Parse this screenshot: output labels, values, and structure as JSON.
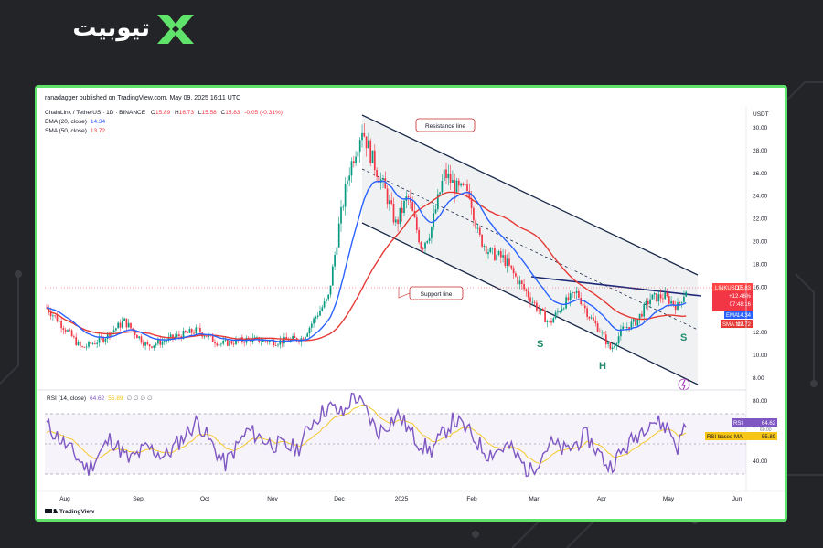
{
  "brand": {
    "name": "تیوبیت",
    "accent": "#5fe36b"
  },
  "header": {
    "published": "ranadagger published on TradingView.com, May 09, 2025 16:11 UTC",
    "symbol_line": "ChainLink / TetherUS · 1D · BINANCE",
    "ohlc": {
      "o_label": "O",
      "o": "15.89",
      "h_label": "H",
      "h": "16.73",
      "l_label": "L",
      "l": "15.58",
      "c_label": "C",
      "c": "15.83",
      "chg": "-0.05 (-0.31%)"
    },
    "ema_label": "EMA (20, close)",
    "ema_value": "14.34",
    "sma_label": "SMA (50, close)",
    "sma_value": "13.72"
  },
  "annotations": {
    "resistance": "Resistance line",
    "support": "Support line",
    "s_left": "S",
    "h": "H",
    "s_right": "S"
  },
  "price_axis": {
    "currency": "USDT",
    "ticks": [
      "30.00",
      "28.00",
      "26.00",
      "24.00",
      "22.00",
      "20.00",
      "18.00",
      "16.00",
      "12.00",
      "10.00",
      "8.00"
    ],
    "tags": {
      "symbol": "LINKUSDT",
      "price": "15.83",
      "change": "+12.46%",
      "countdown": "07:48:16",
      "ema": "EMA",
      "ema_val": "14.34",
      "sma": "SMA:MA",
      "sma_val": "13.72"
    }
  },
  "rsi": {
    "label": "RSI (14, close)",
    "value": "64.62",
    "ma_value": "55.89",
    "zeros": "∅ ∅ ∅ ∅",
    "ticks": [
      "80.00",
      "60.00",
      "40.00"
    ],
    "tag": "RSI",
    "tag_val": "64.62",
    "ma_tag": "RSI-based MA",
    "ma_tag_val": "55.89",
    "hidden_tick": "60.00"
  },
  "time_axis": [
    "Aug",
    "Sep",
    "Oct",
    "Nov",
    "Dec",
    "2025",
    "Feb",
    "Mar",
    "Apr",
    "May",
    "Jun"
  ],
  "footer": {
    "brand": "TradingView"
  },
  "colors": {
    "up": "#089981",
    "down": "#f23645",
    "ema": "#2962ff",
    "sma": "#e53935",
    "rsi": "#7e57c2",
    "rsi_ma": "#f5c518",
    "channel": "#1a2a4a",
    "neck": "#1e2a78"
  },
  "chart_data": {
    "type": "candlestick",
    "ylim": [
      7,
      31
    ],
    "x": [
      "Aug",
      "Sep",
      "Oct",
      "Nov",
      "Dec",
      "2025",
      "Feb",
      "Mar",
      "Apr",
      "May"
    ],
    "close_approx": [
      12.5,
      10.8,
      11.5,
      11.0,
      22.0,
      24.0,
      22.0,
      14.5,
      12.5,
      15.83
    ],
    "channel_upper": {
      "from": [
        "Dec",
        30.5
      ],
      "to": [
        "May",
        17.5
      ]
    },
    "channel_lower": {
      "from": [
        "Dec",
        20.3
      ],
      "to": [
        "May",
        7.5
      ]
    },
    "neckline": {
      "from": [
        "Mar",
        16.5
      ],
      "to": [
        "May",
        15.0
      ]
    },
    "rsi_range": [
      20,
      85
    ]
  }
}
